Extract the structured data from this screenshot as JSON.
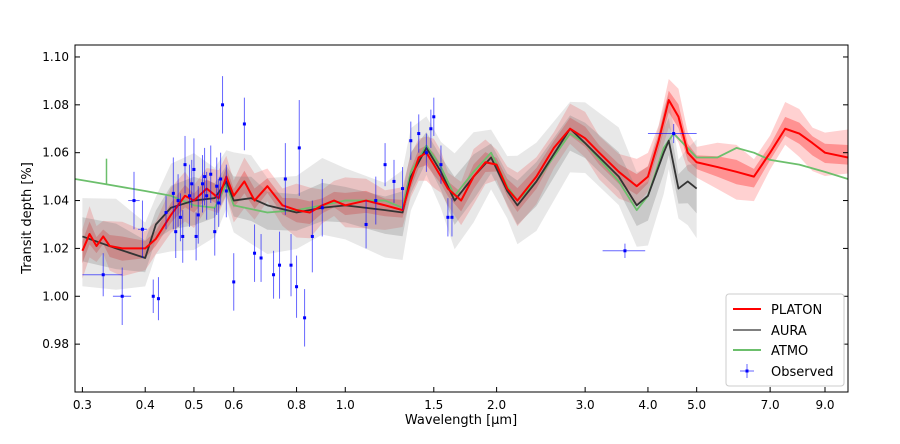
{
  "chart_data": {
    "type": "line",
    "xlabel": "Wavelength [μm]",
    "ylabel": "Transit depth [%]",
    "xscale": "log",
    "xlim": [
      0.29,
      10.0
    ],
    "ylim": [
      0.96,
      1.105
    ],
    "xticks": [
      0.3,
      0.4,
      0.5,
      0.6,
      0.8,
      1.0,
      1.5,
      2.0,
      3.0,
      4.0,
      5.0,
      7.0,
      9.0
    ],
    "xtick_labels": [
      "0.3",
      "0.4",
      "0.5",
      "0.6",
      "0.8",
      "1.0",
      "1.5",
      "2.0",
      "3.0",
      "4.0",
      "5.0",
      "7.0",
      "9.0"
    ],
    "yticks": [
      0.98,
      1.0,
      1.02,
      1.04,
      1.06,
      1.08,
      1.1
    ],
    "ytick_labels": [
      "0.98",
      "1.00",
      "1.02",
      "1.04",
      "1.06",
      "1.08",
      "1.10"
    ],
    "grid": false,
    "legend_position": "bottom-right",
    "series": [
      {
        "name": "PLATON",
        "color": "#ff0000",
        "band_color": "#ff0000",
        "x": [
          0.3,
          0.31,
          0.32,
          0.33,
          0.34,
          0.36,
          0.4,
          0.42,
          0.45,
          0.48,
          0.5,
          0.53,
          0.56,
          0.58,
          0.6,
          0.63,
          0.66,
          0.7,
          0.75,
          0.8,
          0.85,
          0.9,
          0.95,
          1.0,
          1.1,
          1.2,
          1.3,
          1.35,
          1.4,
          1.45,
          1.5,
          1.55,
          1.6,
          1.7,
          1.8,
          1.9,
          2.0,
          2.1,
          2.2,
          2.4,
          2.6,
          2.8,
          3.0,
          3.2,
          3.5,
          3.8,
          4.0,
          4.2,
          4.4,
          4.6,
          4.8,
          5.0,
          5.5,
          6.0,
          6.5,
          7.0,
          7.5,
          8.0,
          8.5,
          9.0,
          10.0
        ],
        "y": [
          1.019,
          1.026,
          1.021,
          1.025,
          1.021,
          1.02,
          1.02,
          1.024,
          1.034,
          1.042,
          1.04,
          1.045,
          1.041,
          1.05,
          1.042,
          1.048,
          1.04,
          1.046,
          1.038,
          1.036,
          1.035,
          1.038,
          1.04,
          1.038,
          1.04,
          1.038,
          1.036,
          1.048,
          1.058,
          1.06,
          1.055,
          1.05,
          1.045,
          1.04,
          1.05,
          1.056,
          1.055,
          1.045,
          1.04,
          1.05,
          1.062,
          1.07,
          1.066,
          1.06,
          1.052,
          1.046,
          1.05,
          1.065,
          1.082,
          1.075,
          1.06,
          1.056,
          1.054,
          1.052,
          1.05,
          1.06,
          1.07,
          1.068,
          1.064,
          1.06,
          1.058
        ],
        "band_inner": 0.004,
        "band_outer": 0.009
      },
      {
        "name": "AURA",
        "color": "#333333",
        "band_color": "#808080",
        "x": [
          0.3,
          0.35,
          0.4,
          0.42,
          0.45,
          0.5,
          0.55,
          0.58,
          0.6,
          0.65,
          0.7,
          0.8,
          0.9,
          1.0,
          1.2,
          1.3,
          1.35,
          1.45,
          1.55,
          1.65,
          1.8,
          1.95,
          2.1,
          2.2,
          2.4,
          2.8,
          3.0,
          3.5,
          3.8,
          4.0,
          4.3,
          4.4,
          4.6,
          4.8,
          5.0
        ],
        "y": [
          1.025,
          1.02,
          1.016,
          1.03,
          1.037,
          1.04,
          1.041,
          1.048,
          1.04,
          1.041,
          1.038,
          1.035,
          1.037,
          1.038,
          1.036,
          1.035,
          1.05,
          1.062,
          1.052,
          1.04,
          1.05,
          1.058,
          1.044,
          1.038,
          1.048,
          1.07,
          1.064,
          1.05,
          1.038,
          1.042,
          1.06,
          1.065,
          1.045,
          1.048,
          1.045
        ],
        "band_inner": 0.008,
        "band_outer": 0.016
      },
      {
        "name": "ATMO",
        "color": "#6cbf6c",
        "x": [
          0.29,
          0.33,
          0.4,
          0.45,
          0.5,
          0.55,
          0.58,
          0.6,
          0.7,
          0.8,
          0.9,
          1.0,
          1.2,
          1.3,
          1.35,
          1.45,
          1.55,
          1.65,
          1.8,
          1.95,
          2.1,
          2.2,
          2.4,
          2.8,
          3.0,
          3.5,
          3.8,
          4.0,
          4.3,
          4.5,
          5.0,
          5.5,
          6.0,
          6.5,
          7.0,
          8.0,
          9.0,
          10.0
        ],
        "y": [
          1.049,
          1.047,
          1.044,
          1.042,
          1.038,
          1.037,
          1.047,
          1.038,
          1.035,
          1.036,
          1.038,
          1.04,
          1.04,
          1.037,
          1.052,
          1.063,
          1.054,
          1.042,
          1.052,
          1.06,
          1.046,
          1.04,
          1.048,
          1.068,
          1.064,
          1.048,
          1.036,
          1.042,
          1.062,
          1.068,
          1.058,
          1.058,
          1.062,
          1.06,
          1.057,
          1.055,
          1.052,
          1.049
        ]
      },
      {
        "name": "Observed",
        "color": "#0000ff",
        "type": "errorbar",
        "points": [
          [
            0.33,
            1.009,
            0.009,
            0.03
          ],
          [
            0.36,
            1.0,
            0.012,
            0.015
          ],
          [
            0.38,
            1.04,
            0.012,
            0.01
          ],
          [
            0.395,
            1.028,
            0.012,
            0.008
          ],
          [
            0.415,
            1.0,
            0.007,
            0
          ],
          [
            0.425,
            0.999,
            0.009,
            0
          ],
          [
            0.44,
            1.035,
            0.007,
            0
          ],
          [
            0.455,
            1.043,
            0.015,
            0
          ],
          [
            0.46,
            1.027,
            0.011,
            0
          ],
          [
            0.465,
            1.04,
            0.011,
            0
          ],
          [
            0.47,
            1.033,
            0.01,
            0
          ],
          [
            0.475,
            1.025,
            0.011,
            0
          ],
          [
            0.48,
            1.055,
            0.012,
            0
          ],
          [
            0.49,
            1.042,
            0.013,
            0
          ],
          [
            0.495,
            1.047,
            0.01,
            0
          ],
          [
            0.5,
            1.053,
            0.013,
            0
          ],
          [
            0.505,
            1.025,
            0.01,
            0
          ],
          [
            0.51,
            1.034,
            0.012,
            0
          ],
          [
            0.52,
            1.047,
            0.012,
            0
          ],
          [
            0.525,
            1.05,
            0.012,
            0
          ],
          [
            0.53,
            1.042,
            0.01,
            0
          ],
          [
            0.54,
            1.051,
            0.012,
            0
          ],
          [
            0.55,
            1.027,
            0.01,
            0
          ],
          [
            0.555,
            1.046,
            0.012,
            0
          ],
          [
            0.56,
            1.039,
            0.01,
            0
          ],
          [
            0.565,
            1.049,
            0.011,
            0
          ],
          [
            0.57,
            1.08,
            0.012,
            0
          ],
          [
            0.58,
            1.044,
            0.011,
            0
          ],
          [
            0.6,
            1.006,
            0.012,
            0
          ],
          [
            0.63,
            1.072,
            0.011,
            0
          ],
          [
            0.66,
            1.018,
            0.012,
            0
          ],
          [
            0.68,
            1.016,
            0.01,
            0
          ],
          [
            0.72,
            1.009,
            0.01,
            0
          ],
          [
            0.74,
            1.013,
            0.014,
            0
          ],
          [
            0.76,
            1.049,
            0.015,
            0
          ],
          [
            0.78,
            1.013,
            0.013,
            0
          ],
          [
            0.8,
            1.004,
            0.013,
            0
          ],
          [
            0.81,
            1.062,
            0.02,
            0
          ],
          [
            0.83,
            0.991,
            0.012,
            0
          ],
          [
            0.86,
            1.025,
            0.015,
            0
          ],
          [
            0.9,
            1.037,
            0.012,
            0
          ],
          [
            1.1,
            1.03,
            0.01,
            0
          ],
          [
            1.15,
            1.04,
            0.01,
            0
          ],
          [
            1.2,
            1.055,
            0.009,
            0
          ],
          [
            1.25,
            1.048,
            0.009,
            0
          ],
          [
            1.3,
            1.045,
            0.009,
            0
          ],
          [
            1.35,
            1.065,
            0.008,
            0
          ],
          [
            1.4,
            1.068,
            0.008,
            0
          ],
          [
            1.45,
            1.06,
            0.008,
            0
          ],
          [
            1.48,
            1.07,
            0.008,
            0
          ],
          [
            1.5,
            1.075,
            0.008,
            0
          ],
          [
            1.55,
            1.055,
            0.008,
            0
          ],
          [
            1.6,
            1.033,
            0.008,
            0
          ],
          [
            1.63,
            1.033,
            0.008,
            0
          ],
          [
            3.6,
            1.019,
            0.003,
            0.35
          ],
          [
            4.5,
            1.068,
            0.004,
            0.5
          ]
        ]
      }
    ]
  }
}
